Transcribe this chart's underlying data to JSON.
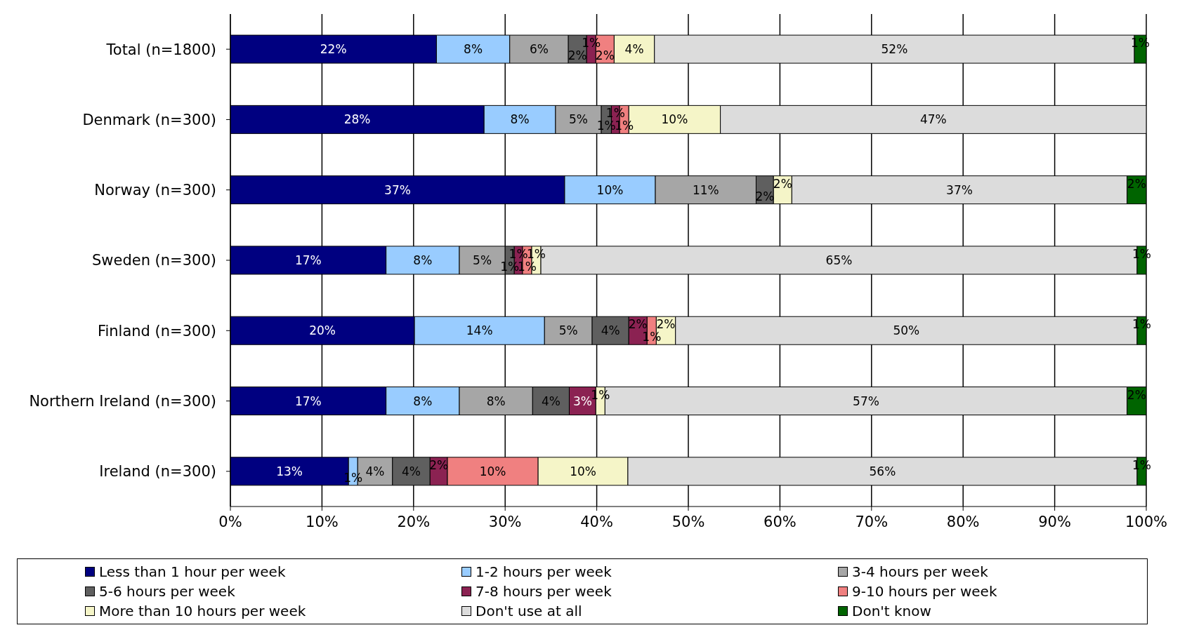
{
  "chart_data": {
    "type": "bar",
    "orientation": "horizontal",
    "stacked": true,
    "categories": [
      "Total (n=1800)",
      "Denmark (n=300)",
      "Norway (n=300)",
      "Sweden (n=300)",
      "Finland (n=300)",
      "Northern Ireland (n=300)",
      "Ireland (n=300)"
    ],
    "xlim": [
      0,
      100
    ],
    "xticks": [
      {
        "value": 0,
        "label": "0%"
      },
      {
        "value": 10,
        "label": "10%"
      },
      {
        "value": 20,
        "label": "20%"
      },
      {
        "value": 30,
        "label": "30%"
      },
      {
        "value": 40,
        "label": "40%"
      },
      {
        "value": 50,
        "label": "50%"
      },
      {
        "value": 60,
        "label": "60%"
      },
      {
        "value": 70,
        "label": "70%"
      },
      {
        "value": 80,
        "label": "80%"
      },
      {
        "value": 90,
        "label": "90%"
      },
      {
        "value": 100,
        "label": "100%"
      }
    ],
    "grid": "x",
    "legend": "bottom",
    "series": [
      {
        "name": "Less than 1 hour per week",
        "color": "#000080",
        "values": [
          22.5,
          27.7,
          36.5,
          17.0,
          20.1,
          17.0,
          12.9
        ],
        "value_labels": [
          "22%",
          "28%",
          "37%",
          "17%",
          "20%",
          "17%",
          "13%"
        ]
      },
      {
        "name": "1-2 hours per week",
        "color": "#99ccff",
        "values": [
          8.0,
          7.8,
          9.9,
          8.0,
          14.2,
          8.0,
          1.0
        ],
        "value_labels": [
          "8%",
          "8%",
          "10%",
          "8%",
          "14%",
          "8%",
          "1%"
        ]
      },
      {
        "name": "3-4 hours per week",
        "color": "#a6a6a6",
        "values": [
          6.4,
          5.0,
          11.0,
          5.0,
          5.2,
          8.0,
          3.8
        ],
        "value_labels": [
          "6%",
          "5%",
          "11%",
          "5%",
          "5%",
          "8%",
          "4%"
        ]
      },
      {
        "name": "5-6 hours per week",
        "color": "#5f5f5f",
        "values": [
          2.0,
          1.1,
          1.9,
          1.0,
          4.0,
          4.0,
          4.1
        ],
        "value_labels": [
          "2%",
          "1%",
          "2%",
          "1%",
          "4%",
          "4%",
          "4%"
        ]
      },
      {
        "name": "7-8 hours per week",
        "color": "#8b2252",
        "values": [
          1.0,
          0.9,
          0,
          0.9,
          2.0,
          2.9,
          1.9
        ],
        "value_labels": [
          "1%",
          "1%",
          null,
          "1%",
          "2%",
          "3%",
          "2%"
        ]
      },
      {
        "name": "9-10 hours per week",
        "color": "#f08080",
        "values": [
          2.0,
          1.0,
          0,
          1.0,
          1.0,
          0,
          9.9
        ],
        "value_labels": [
          "2%",
          "1%",
          null,
          "1%",
          "1%",
          null,
          "10%"
        ]
      },
      {
        "name": "More than 10 hours per week",
        "color": "#f5f5c8",
        "values": [
          4.4,
          10.0,
          2.0,
          1.0,
          2.1,
          1.0,
          9.8
        ],
        "value_labels": [
          "4%",
          "10%",
          "2%",
          "1%",
          "2%",
          "1%",
          "10%"
        ]
      },
      {
        "name": "Don't use at all",
        "color": "#dcdcdc",
        "values": [
          52.4,
          46.5,
          36.6,
          65.1,
          50.4,
          57.0,
          55.6
        ],
        "value_labels": [
          "52%",
          "47%",
          "37%",
          "65%",
          "50%",
          "57%",
          "56%"
        ]
      },
      {
        "name": "Don't know",
        "color": "#006400",
        "values": [
          1.3,
          0,
          2.1,
          1.0,
          1.0,
          2.1,
          1.0
        ],
        "value_labels": [
          "1%",
          null,
          "2%",
          "1%",
          "1%",
          "2%",
          "1%"
        ]
      }
    ]
  }
}
